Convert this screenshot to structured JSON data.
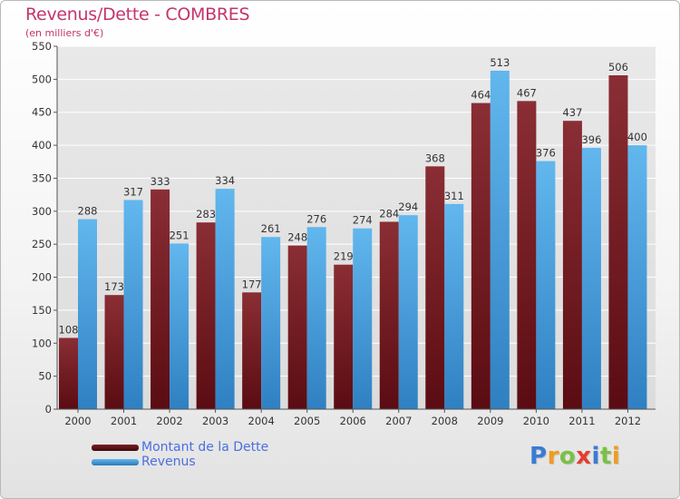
{
  "header": {
    "title": "Revenus/Dette - COMBRES",
    "subtitle": "(en milliers d'€)"
  },
  "legend": {
    "debt_label": "Montant de la Dette",
    "revenue_label": "Revenus"
  },
  "logo": {
    "text": "Proxiti",
    "letters": [
      "P",
      "r",
      "o",
      "x",
      "i",
      "t",
      "i"
    ],
    "letter_colors": [
      "#3a7bd5",
      "#f29b1d",
      "#7ac143",
      "#e63c2f",
      "#3a7bd5",
      "#7ac143",
      "#f29b1d"
    ]
  },
  "colors": {
    "title": "#c4346c",
    "debt": "#7a1f25",
    "debt_dark": "#4a0a0e",
    "revenue": "#5aafe8",
    "revenue_dark": "#2a78b8",
    "grid": "#ffffff",
    "axis_text": "#333333",
    "legend_text": "#4a6fe0"
  },
  "chart_data": {
    "type": "bar",
    "title": "Revenus/Dette - COMBRES",
    "subtitle": "(en milliers d'€)",
    "xlabel": "",
    "ylabel": "",
    "ylim": [
      0,
      550
    ],
    "yticks": [
      0,
      50,
      100,
      150,
      200,
      250,
      300,
      350,
      400,
      450,
      500,
      550
    ],
    "grid": true,
    "legend_position": "bottom-left",
    "categories": [
      "2000",
      "2001",
      "2002",
      "2003",
      "2004",
      "2005",
      "2006",
      "2007",
      "2008",
      "2009",
      "2010",
      "2011",
      "2012"
    ],
    "series": [
      {
        "name": "Montant de la Dette",
        "values": [
          108,
          173,
          333,
          283,
          177,
          248,
          219,
          284,
          368,
          464,
          467,
          437,
          506
        ]
      },
      {
        "name": "Revenus",
        "values": [
          288,
          317,
          251,
          334,
          261,
          276,
          274,
          294,
          311,
          513,
          376,
          396,
          400
        ]
      }
    ]
  }
}
